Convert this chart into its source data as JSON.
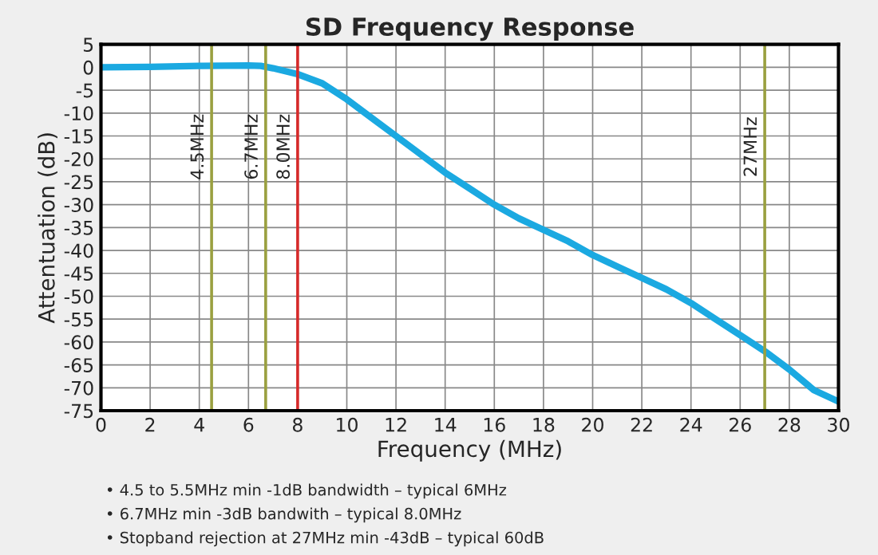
{
  "chart_data": {
    "type": "line",
    "title": "SD Frequency Response",
    "xlabel": "Frequency (MHz)",
    "ylabel": "Attentuation (dB)",
    "x": [
      0,
      2,
      4,
      6,
      6.5,
      7,
      8,
      9,
      10,
      11,
      12,
      13,
      14,
      15,
      16,
      17,
      18,
      19,
      20,
      21,
      22,
      23,
      24,
      25,
      26,
      27,
      28,
      29,
      30
    ],
    "series": [
      {
        "color": "#1ba9e1",
        "values": [
          0,
          0.1,
          0.3,
          0.4,
          0.3,
          -0.2,
          -1.5,
          -3.5,
          -7,
          -11,
          -15,
          -19,
          -23,
          -26.5,
          -30,
          -33,
          -35.5,
          -38,
          -41,
          -43.5,
          -46,
          -48.5,
          -51.5,
          -55,
          -58.5,
          -62,
          -66,
          -70.5,
          -73
        ]
      }
    ],
    "xlim": [
      0,
      30
    ],
    "xticks": [
      0,
      2,
      4,
      6,
      8,
      10,
      12,
      14,
      16,
      18,
      20,
      22,
      24,
      26,
      28,
      30
    ],
    "ylim": [
      -75,
      5
    ],
    "yticks": [
      -75,
      -70,
      -65,
      -60,
      -55,
      -50,
      -45,
      -40,
      -35,
      -30,
      -25,
      -20,
      -15,
      -10,
      -5,
      0,
      5
    ],
    "grid": true,
    "marker": "none",
    "line_style": "solid",
    "ref_lines": [
      {
        "axis": "x",
        "value": 4.5,
        "label": "4.5MHz",
        "color": "#9aa040"
      },
      {
        "axis": "x",
        "value": 6.7,
        "label": "6.7MHz",
        "color": "#9aa040"
      },
      {
        "axis": "x",
        "value": 8.0,
        "label": "8.0MHz",
        "color": "#d62a2a"
      },
      {
        "axis": "x",
        "value": 27,
        "label": "27MHz",
        "color": "#9aa040"
      }
    ],
    "annotations": [
      "• 4.5 to 5.5MHz min -1dB bandwidth – typical 6MHz",
      "• 6.7MHz min -3dB bandwith – typical 8.0MHz",
      "• Stopband rejection at 27MHz min -43dB – typical 60dB"
    ]
  }
}
